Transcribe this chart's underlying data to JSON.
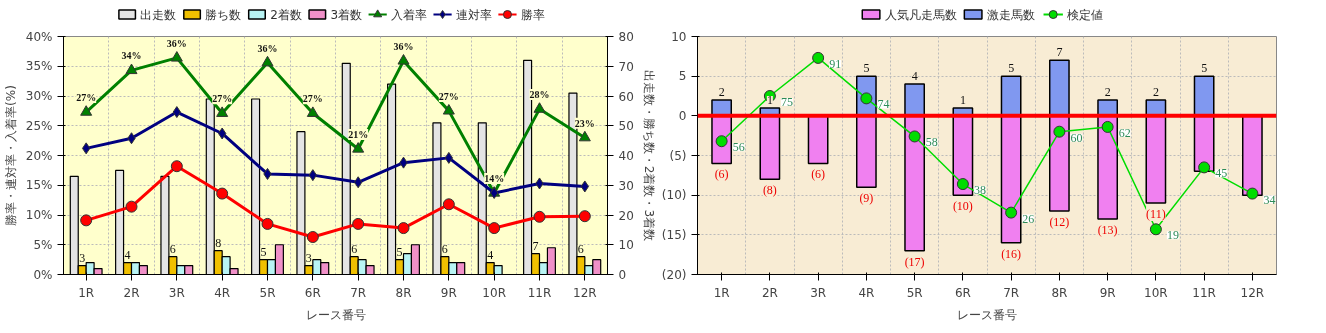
{
  "chart_data": [
    {
      "type": "bar",
      "xlabel": "レース番号",
      "ylabel": "勝率・連対率・入着率(%)",
      "y2label": "出走数・勝ち数・2着数・3着数",
      "categories": [
        "1R",
        "2R",
        "3R",
        "4R",
        "5R",
        "6R",
        "7R",
        "8R",
        "9R",
        "10R",
        "11R",
        "12R"
      ],
      "ylim": [
        0,
        40
      ],
      "yticks": [
        {
          "value": 0,
          "label": "0%"
        },
        {
          "value": 5,
          "label": "5%"
        },
        {
          "value": 10,
          "label": "10%"
        },
        {
          "value": 15,
          "label": "15%"
        },
        {
          "value": 20,
          "label": "20%"
        },
        {
          "value": 25,
          "label": "25%"
        },
        {
          "value": 30,
          "label": "30%"
        },
        {
          "value": 35,
          "label": "35%"
        },
        {
          "value": 40,
          "label": "40%"
        }
      ],
      "y2lim": [
        0,
        80
      ],
      "y2ticks": [
        0,
        10,
        20,
        30,
        40,
        50,
        60,
        70,
        80
      ],
      "grid": true,
      "legend": "top",
      "series": [
        {
          "name": "出走数",
          "axis": "y2",
          "color": "#e4e4e4",
          "values": [
            33,
            35,
            33,
            59,
            59,
            48,
            71,
            64,
            51,
            51,
            72,
            61
          ]
        },
        {
          "name": "勝ち数",
          "axis": "y2",
          "color": "#f0c000",
          "values": [
            3,
            4,
            6,
            8,
            5,
            3,
            6,
            5,
            6,
            4,
            7,
            6
          ],
          "value_labels": [
            "3",
            "4",
            "6",
            "8",
            "5",
            "3",
            "6",
            "5",
            "6",
            "4",
            "7",
            "6"
          ]
        },
        {
          "name": "2着数",
          "axis": "y2",
          "color": "#b8f4f4",
          "values": [
            4,
            4,
            3,
            6,
            5,
            5,
            5,
            7,
            4,
            3,
            4,
            3
          ]
        },
        {
          "name": "3着数",
          "axis": "y2",
          "color": "#f090c8",
          "values": [
            2,
            3,
            3,
            2,
            10,
            4,
            3,
            10,
            4,
            null,
            9,
            5
          ]
        },
        {
          "name": "入着率",
          "type": "line",
          "marker": "triangle",
          "color": "#008000",
          "values": [
            27.3,
            34.3,
            36.4,
            27.1,
            35.6,
            27.1,
            21.1,
            35.9,
            27.5,
            13.7,
            27.8,
            23.0
          ],
          "value_labels": [
            "27%",
            "34%",
            "36%",
            "27%",
            "36%",
            "27%",
            "21%",
            "36%",
            "27%",
            "14%",
            "28%",
            "23%"
          ]
        },
        {
          "name": "連対率",
          "type": "line",
          "marker": "diamond",
          "color": "#000080",
          "values": [
            21.2,
            22.9,
            27.3,
            23.7,
            16.9,
            16.7,
            15.5,
            18.8,
            19.6,
            13.7,
            15.3,
            14.8
          ]
        },
        {
          "name": "勝率",
          "type": "line",
          "marker": "circle",
          "color": "#ff0000",
          "values": [
            9.1,
            11.4,
            18.2,
            13.6,
            8.5,
            6.3,
            8.5,
            7.8,
            11.8,
            7.8,
            9.7,
            9.8
          ]
        }
      ]
    },
    {
      "type": "bar",
      "xlabel": "レース番号",
      "stacked": true,
      "categories": [
        "1R",
        "2R",
        "3R",
        "4R",
        "5R",
        "6R",
        "7R",
        "8R",
        "9R",
        "10R",
        "11R",
        "12R"
      ],
      "ylim": [
        -20,
        10
      ],
      "y2lim": [
        0,
        100
      ],
      "yticks": [
        {
          "value": -20,
          "label": "(20)"
        },
        {
          "value": -15,
          "label": "(15)"
        },
        {
          "value": -10,
          "label": "(10)"
        },
        {
          "value": -5,
          "label": "(5)"
        },
        0,
        5,
        10
      ],
      "grid": true,
      "legend": "top",
      "ref_lines": [
        {
          "axis": "y",
          "value": 0,
          "color": "#ff0000"
        }
      ],
      "series": [
        {
          "name": "人気凡走馬数",
          "color": "#f080f0",
          "values": [
            -6,
            -8,
            -6,
            -9,
            -17,
            -10,
            -16,
            -12,
            -13,
            -11,
            -7,
            -10
          ],
          "value_labels": [
            "(6)",
            "(8)",
            "(6)",
            "(9)",
            "(17)",
            "(10)",
            "(16)",
            "(12)",
            "(13)",
            "(11)",
            null,
            null
          ]
        },
        {
          "name": "激走馬数",
          "color": "#8098f0",
          "values": [
            2,
            1,
            null,
            5,
            4,
            1,
            5,
            7,
            2,
            2,
            5,
            null
          ],
          "value_labels": [
            "2",
            "1",
            null,
            "5",
            "4",
            "1",
            "5",
            "7",
            "2",
            "2",
            "5",
            null
          ]
        },
        {
          "name": "検定値",
          "type": "line",
          "axis": "y2",
          "marker": "circle",
          "color": "#00dd00",
          "values": [
            56,
            75,
            91,
            74,
            58,
            38,
            26,
            60,
            62,
            19,
            45,
            34
          ],
          "value_labels": [
            "56",
            "75",
            "91",
            "74",
            "58",
            "38",
            "26",
            "60",
            "62",
            "19",
            "45",
            "34"
          ]
        }
      ]
    }
  ]
}
